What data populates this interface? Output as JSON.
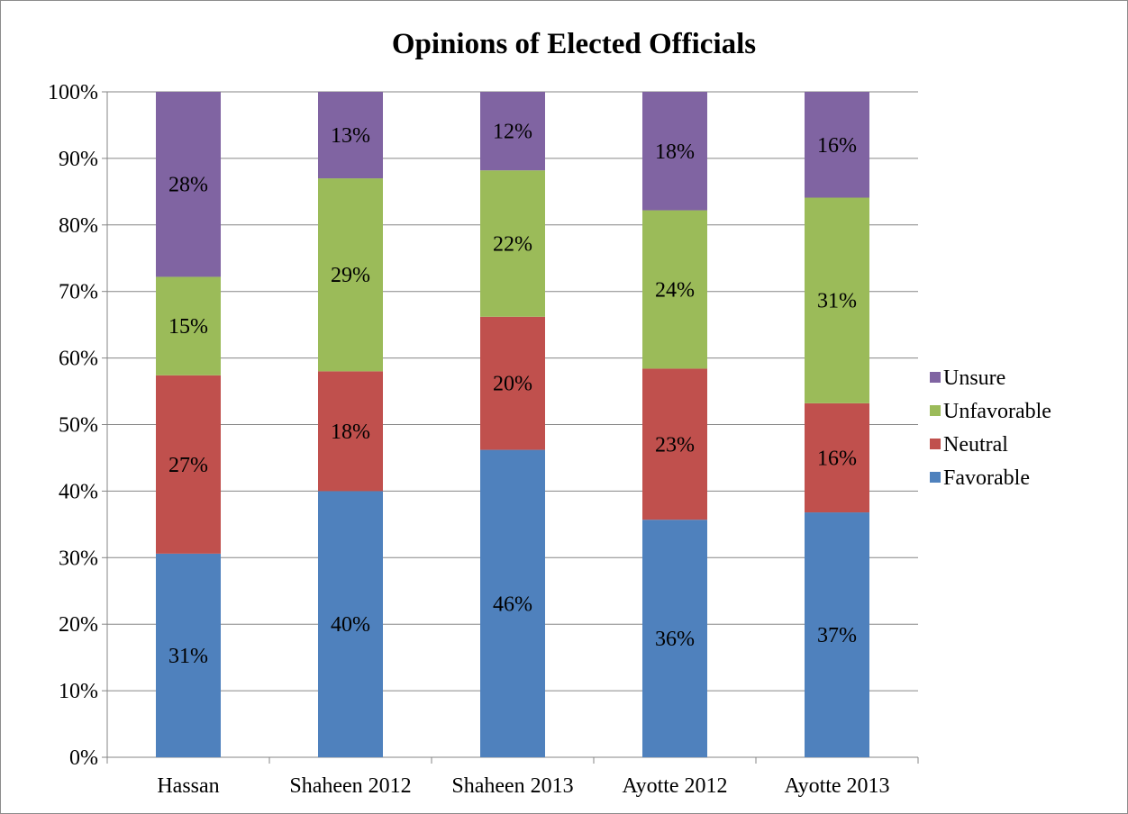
{
  "chart_data": {
    "type": "bar",
    "stacked": true,
    "title": "Opinions of Elected Officials",
    "xlabel": "",
    "ylabel": "",
    "categories": [
      "Hassan",
      "Shaheen 2012",
      "Shaheen 2013",
      "Ayotte 2012",
      "Ayotte 2013"
    ],
    "ylim": [
      0,
      100
    ],
    "y_ticks": [
      "0%",
      "10%",
      "20%",
      "30%",
      "40%",
      "50%",
      "60%",
      "70%",
      "80%",
      "90%",
      "100%"
    ],
    "series": [
      {
        "name": "Favorable",
        "color": "#4F81BD",
        "values": [
          30.6,
          40.0,
          46.2,
          35.7,
          36.8
        ],
        "labels": [
          "31%",
          "40%",
          "46%",
          "36%",
          "37%"
        ]
      },
      {
        "name": "Neutral",
        "color": "#C0504D",
        "values": [
          26.8,
          18.0,
          20.0,
          22.7,
          16.4
        ],
        "labels": [
          "27%",
          "18%",
          "20%",
          "23%",
          "16%"
        ]
      },
      {
        "name": "Unfavorable",
        "color": "#9BBB59",
        "values": [
          14.8,
          29.0,
          22.0,
          23.8,
          30.9
        ],
        "labels": [
          "15%",
          "29%",
          "22%",
          "24%",
          "31%"
        ]
      },
      {
        "name": "Unsure",
        "color": "#8064A2",
        "values": [
          27.8,
          13.0,
          11.8,
          17.8,
          15.9
        ],
        "labels": [
          "28%",
          "13%",
          "12%",
          "18%",
          "16%"
        ]
      }
    ],
    "legend_position": "right",
    "legend_order": [
      "Unsure",
      "Unfavorable",
      "Neutral",
      "Favorable"
    ],
    "grid": true
  }
}
